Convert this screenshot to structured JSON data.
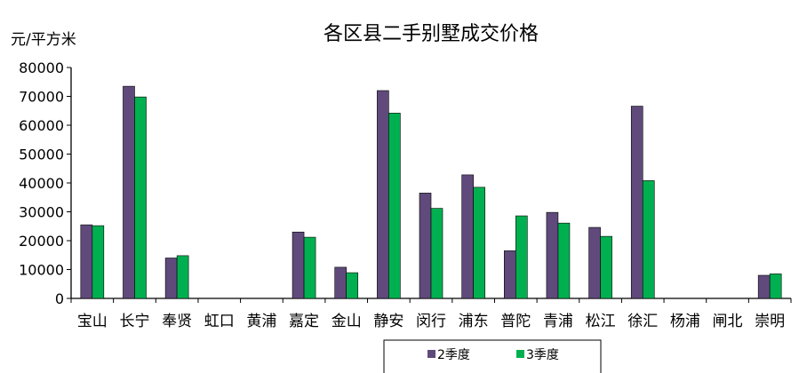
{
  "chart_data": {
    "type": "bar",
    "title": "各区县二手别墅成交价格",
    "ylabel": "元/平方米",
    "xlabel": "",
    "ylim": [
      0,
      80000
    ],
    "yticks": [
      0,
      10000,
      20000,
      30000,
      40000,
      50000,
      60000,
      70000,
      80000
    ],
    "categories": [
      "宝山",
      "长宁",
      "奉贤",
      "虹口",
      "黄浦",
      "嘉定",
      "金山",
      "静安",
      "闵行",
      "浦东",
      "普陀",
      "青浦",
      "松江",
      "徐汇",
      "杨浦",
      "闸北",
      "崇明"
    ],
    "series": [
      {
        "name": "2季度",
        "color": "#604a7b",
        "values": [
          25500,
          73500,
          14000,
          0,
          0,
          23000,
          10800,
          72000,
          36500,
          42800,
          16500,
          29800,
          24600,
          66600,
          0,
          0,
          8000
        ]
      },
      {
        "name": "3季度",
        "color": "#00b050",
        "values": [
          25200,
          69800,
          14800,
          0,
          0,
          21200,
          8900,
          64200,
          31200,
          38500,
          28600,
          26100,
          21500,
          40800,
          0,
          0,
          8500
        ]
      }
    ],
    "legend_position": "bottom",
    "grid": false
  }
}
